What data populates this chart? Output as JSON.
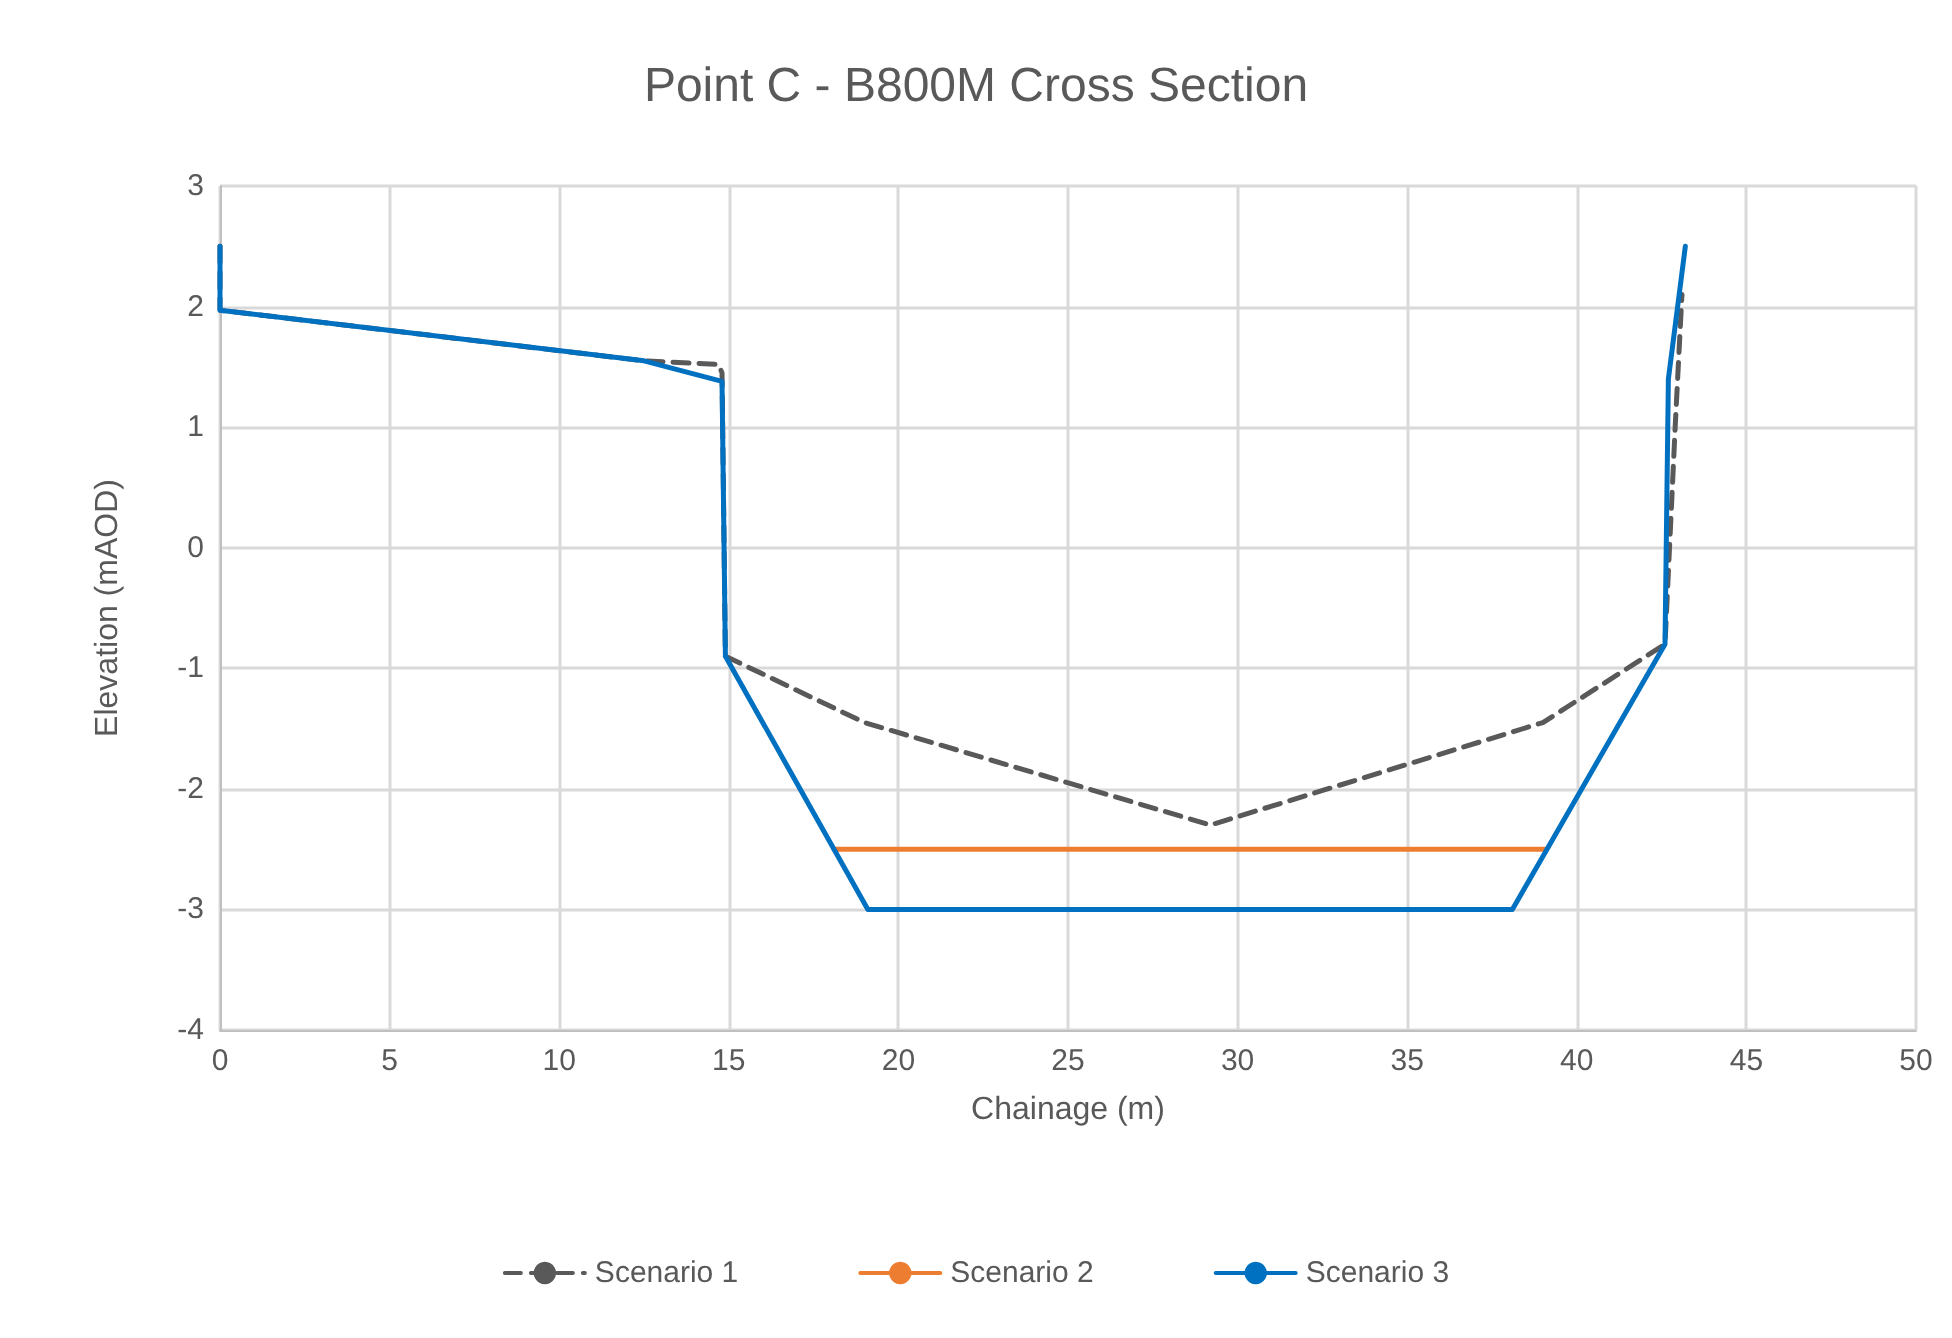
{
  "chart_data": {
    "type": "line",
    "title": "Point C - B800M Cross Section",
    "xlabel": "Chainage (m)",
    "ylabel": "Elevation (mAOD)",
    "xlim": [
      0,
      50
    ],
    "xticks": [
      0,
      5,
      10,
      15,
      20,
      25,
      30,
      35,
      40,
      45,
      50
    ],
    "ylim": [
      -4,
      3
    ],
    "yticks": [
      -4,
      -3,
      -2,
      -1,
      0,
      1,
      2,
      3
    ],
    "grid": true,
    "legend": "bottom",
    "marker": "none",
    "series": [
      {
        "name": "Scenario 1",
        "color": "#595959",
        "line_style": "dashed",
        "x": [
          0,
          0,
          12.5,
          14.7,
          14.8,
          14.9,
          19,
          29.2,
          39,
          42.6,
          42.9,
          43.1
        ],
        "values": [
          2.5,
          1.97,
          1.55,
          1.52,
          1.45,
          -0.9,
          -1.45,
          -2.3,
          -1.45,
          -0.8,
          1.0,
          2.1
        ]
      },
      {
        "name": "Scenario 2",
        "color": "#ed7d31",
        "line_style": "solid",
        "x": [
          18.1,
          39.1
        ],
        "values": [
          -2.5,
          -2.5
        ]
      },
      {
        "name": "Scenario 3",
        "color": "#0070c0",
        "line_style": "solid",
        "x": [
          0,
          0,
          12.5,
          14.8,
          14.9,
          19.1,
          38.1,
          42.6,
          42.7,
          43.2
        ],
        "values": [
          2.5,
          1.97,
          1.55,
          1.38,
          -0.9,
          -3,
          -3,
          -0.8,
          1.4,
          2.5
        ]
      }
    ]
  }
}
